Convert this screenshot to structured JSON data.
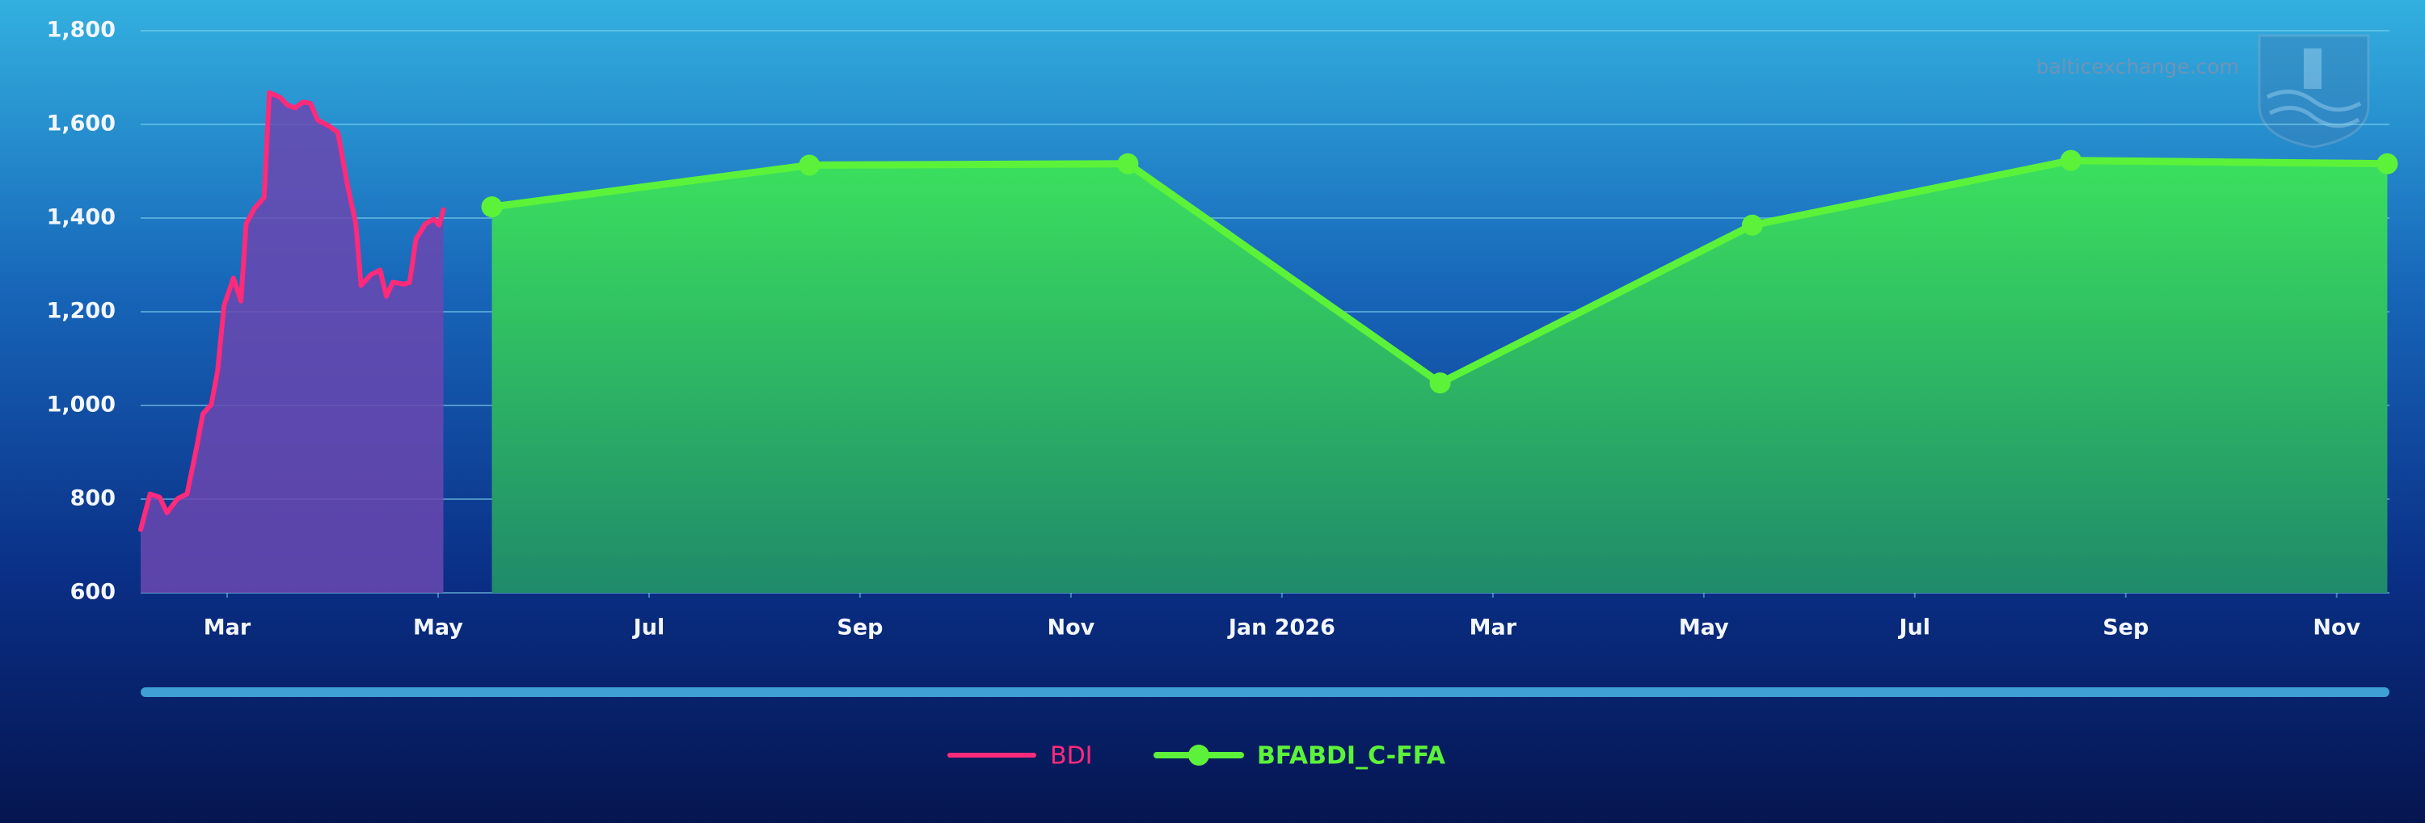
{
  "chart_data": {
    "type": "line",
    "watermark": "balticexchange.com",
    "xlim": [
      2.18,
      23.5
    ],
    "xticks": [
      {
        "value": 3,
        "label": "Mar"
      },
      {
        "value": 5,
        "label": "May"
      },
      {
        "value": 7,
        "label": "Jul"
      },
      {
        "value": 9,
        "label": "Sep"
      },
      {
        "value": 11,
        "label": "Nov"
      },
      {
        "value": 13,
        "label": "Jan 2026"
      },
      {
        "value": 15,
        "label": "Mar"
      },
      {
        "value": 17,
        "label": "May"
      },
      {
        "value": 19,
        "label": "Jul"
      },
      {
        "value": 21,
        "label": "Sep"
      },
      {
        "value": 23,
        "label": "Nov"
      }
    ],
    "ylim": [
      600,
      1800
    ],
    "yticks": [
      600,
      800,
      {
        "value": 1000,
        "label": "1,000"
      },
      {
        "value": 1200,
        "label": "1,200"
      },
      {
        "value": 1400,
        "label": "1,400"
      },
      {
        "value": 1600,
        "label": "1,600"
      },
      {
        "value": 1800,
        "label": "1,800"
      }
    ],
    "grid": true,
    "series": [
      {
        "name": "BDI",
        "color": "#ff2a7a",
        "area_color": "#6a48b0",
        "markers": false,
        "x": [
          2.18,
          2.27,
          2.36,
          2.43,
          2.53,
          2.62,
          2.71,
          2.77,
          2.85,
          2.91,
          2.97,
          3.06,
          3.13,
          3.18,
          3.26,
          3.35,
          3.4,
          3.5,
          3.57,
          3.64,
          3.72,
          3.79,
          3.86,
          3.97,
          4.05,
          4.14,
          4.22,
          4.27,
          4.36,
          4.45,
          4.51,
          4.57,
          4.68,
          4.73,
          4.79,
          4.88,
          4.96,
          5.01,
          5.05
        ],
        "values": [
          735,
          811,
          804,
          771,
          801,
          811,
          910,
          982,
          1002,
          1075,
          1213,
          1272,
          1223,
          1388,
          1421,
          1444,
          1668,
          1658,
          1642,
          1635,
          1648,
          1645,
          1609,
          1596,
          1583,
          1471,
          1388,
          1256,
          1279,
          1289,
          1233,
          1263,
          1259,
          1263,
          1355,
          1388,
          1398,
          1385,
          1418
        ]
      },
      {
        "name": "BFABDI_C-FFA",
        "color": "#5cf23a",
        "area_color": "#34d65c",
        "markers": true,
        "x": [
          5.51,
          8.52,
          11.54,
          14.5,
          17.46,
          20.48,
          23.48
        ],
        "values": [
          1424,
          1513,
          1516,
          1048,
          1385,
          1523,
          1516
        ]
      }
    ]
  }
}
